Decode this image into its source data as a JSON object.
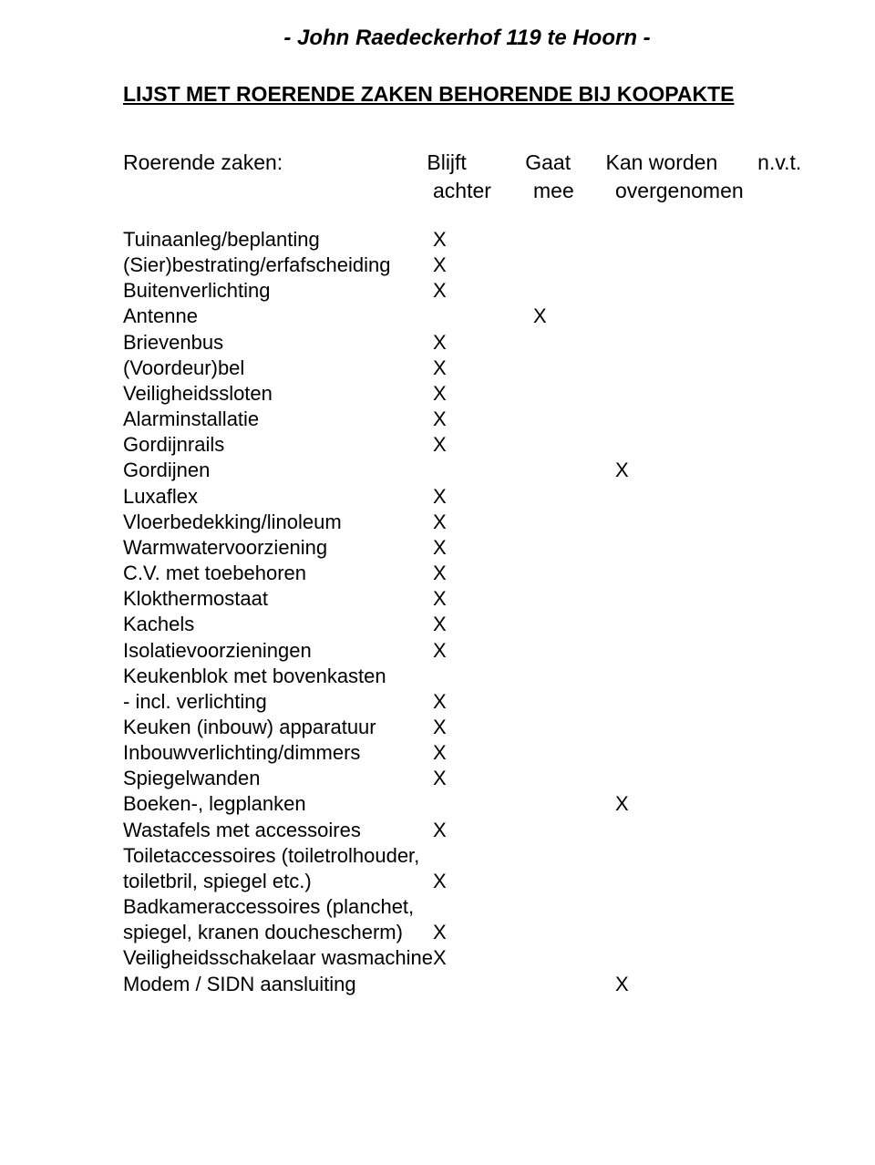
{
  "title": "- John Raedeckerhof 119 te Hoorn -",
  "subtitle": "LIJST MET ROERENDE ZAKEN BEHORENDE BIJ KOOPAKTE",
  "header": {
    "label": "Roerende zaken:",
    "col_blijft": "Blijft",
    "col_gaat": "Gaat",
    "col_kan": "Kan worden",
    "col_nvt": "n.v.t.",
    "sub_achter": "achter",
    "sub_mee": "mee",
    "sub_overgenomen": "overgenomen"
  },
  "mark": "X",
  "items": [
    {
      "label": "Tuinaanleg/beplanting",
      "blijft": true,
      "gaat": false,
      "kan": false
    },
    {
      "label": "(Sier)bestrating/erfafscheiding",
      "blijft": true,
      "gaat": false,
      "kan": false
    },
    {
      "label": "Buitenverlichting",
      "blijft": true,
      "gaat": false,
      "kan": false
    },
    {
      "label": "Antenne",
      "blijft": false,
      "gaat": true,
      "kan": false
    },
    {
      "label": "Brievenbus",
      "blijft": true,
      "gaat": false,
      "kan": false
    },
    {
      "label": "(Voordeur)bel",
      "blijft": true,
      "gaat": false,
      "kan": false
    },
    {
      "label": "Veiligheidssloten",
      "blijft": true,
      "gaat": false,
      "kan": false
    },
    {
      "label": "Alarminstallatie",
      "blijft": true,
      "gaat": false,
      "kan": false
    },
    {
      "label": "Gordijnrails",
      "blijft": true,
      "gaat": false,
      "kan": false
    },
    {
      "label": "Gordijnen",
      "blijft": false,
      "gaat": false,
      "kan": true
    },
    {
      "label": "Luxaflex",
      "blijft": true,
      "gaat": false,
      "kan": false
    },
    {
      "label": "Vloerbedekking/linoleum",
      "blijft": true,
      "gaat": false,
      "kan": false
    },
    {
      "label": "Warmwatervoorziening",
      "blijft": true,
      "gaat": false,
      "kan": false
    },
    {
      "label": "C.V. met toebehoren",
      "blijft": true,
      "gaat": false,
      "kan": false
    },
    {
      "label": "Klokthermostaat",
      "blijft": true,
      "gaat": false,
      "kan": false
    },
    {
      "label": "Kachels",
      "blijft": true,
      "gaat": false,
      "kan": false
    },
    {
      "label": "Isolatievoorzieningen",
      "blijft": true,
      "gaat": false,
      "kan": false
    },
    {
      "label": "Keukenblok met bovenkasten",
      "blijft": false,
      "gaat": false,
      "kan": false
    },
    {
      "label": "- incl. verlichting",
      "blijft": true,
      "gaat": false,
      "kan": false
    },
    {
      "label": "Keuken (inbouw) apparatuur",
      "blijft": true,
      "gaat": false,
      "kan": false
    },
    {
      "label": "Inbouwverlichting/dimmers",
      "blijft": true,
      "gaat": false,
      "kan": false
    },
    {
      "label": "Spiegelwanden",
      "blijft": true,
      "gaat": false,
      "kan": false
    },
    {
      "label": "Boeken-, legplanken",
      "blijft": false,
      "gaat": false,
      "kan": true
    },
    {
      "label": "Wastafels met accessoires",
      "blijft": true,
      "gaat": false,
      "kan": false
    },
    {
      "label": "Toiletaccessoires (toiletrolhouder,",
      "blijft": false,
      "gaat": false,
      "kan": false
    },
    {
      "label": "toiletbril, spiegel etc.)",
      "blijft": true,
      "gaat": false,
      "kan": false
    },
    {
      "label": "Badkameraccessoires (planchet,",
      "blijft": false,
      "gaat": false,
      "kan": false
    },
    {
      "label": "spiegel, kranen douchescherm)",
      "blijft": true,
      "gaat": false,
      "kan": false
    },
    {
      "label": "Veiligheidsschakelaar wasmachine",
      "blijft": true,
      "gaat": false,
      "kan": false
    },
    {
      "label": "Modem / SIDN aansluiting",
      "blijft": false,
      "gaat": false,
      "kan": true
    }
  ]
}
